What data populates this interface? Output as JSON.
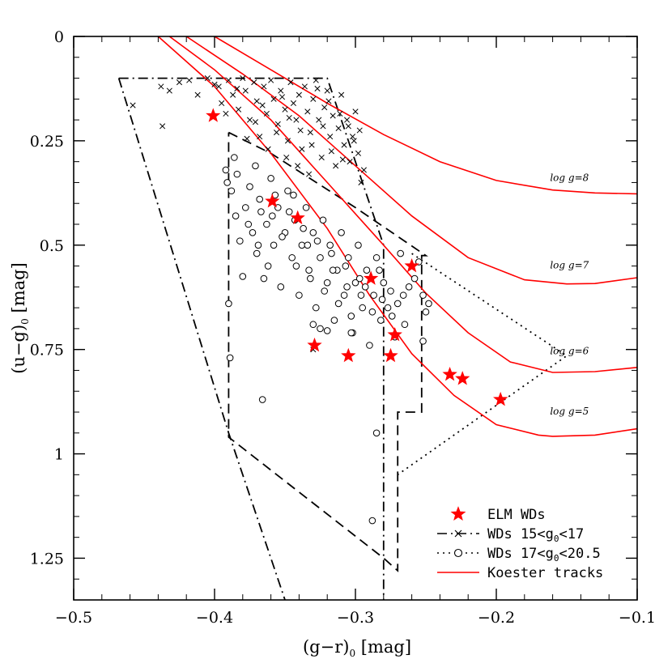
{
  "chart_data": {
    "type": "scatter",
    "title": "",
    "xlabel_main": "(g−r)",
    "xlabel_sub": "0",
    "xlabel_unit": " [mag]",
    "ylabel_main": "(u−g)",
    "ylabel_sub": "0",
    "ylabel_unit": " [mag]",
    "xlim": [
      -0.5,
      -0.1
    ],
    "ylim": [
      1.35,
      0.0
    ],
    "y_inverted": true,
    "x_ticks": [
      -0.5,
      -0.4,
      -0.3,
      -0.2,
      -0.1
    ],
    "x_tick_labels": [
      "−0.5",
      "−0.4",
      "−0.3",
      "−0.2",
      "−0.1"
    ],
    "y_ticks": [
      0,
      0.25,
      0.5,
      0.75,
      1.0,
      1.25
    ],
    "y_tick_labels": [
      "0",
      "0.25",
      "0.5",
      "0.75",
      "1",
      "1.25"
    ],
    "grid": false,
    "legend_position": "bottom-right",
    "legend": [
      {
        "label": "ELM WDs",
        "marker": "star",
        "color": "#ff0000"
      },
      {
        "label_main": "WDs 15<g",
        "label_sub": "0",
        "label_tail": "<17",
        "marker": "cross",
        "line": "dashdot"
      },
      {
        "label_main": "WDs 17<g",
        "label_sub": "0",
        "label_tail": "<20.5",
        "marker": "circle",
        "line": "dotted"
      },
      {
        "label": "Koester tracks",
        "marker": "none",
        "line": "solid",
        "color": "#ff0000"
      }
    ],
    "series": [
      {
        "name": "ELM WDs",
        "kind": "star",
        "color": "#ff0000",
        "points": [
          [
            -0.401,
            0.19
          ],
          [
            -0.359,
            0.395
          ],
          [
            -0.341,
            0.435
          ],
          [
            -0.289,
            0.58
          ],
          [
            -0.26,
            0.55
          ],
          [
            -0.329,
            0.74
          ],
          [
            -0.305,
            0.765
          ],
          [
            -0.272,
            0.715
          ],
          [
            -0.275,
            0.765
          ],
          [
            -0.233,
            0.81
          ],
          [
            -0.224,
            0.82
          ],
          [
            -0.197,
            0.87
          ]
        ]
      },
      {
        "name": "WDs 15<g0<17",
        "kind": "cross",
        "points": [
          [
            -0.458,
            0.165
          ],
          [
            -0.438,
            0.12
          ],
          [
            -0.432,
            0.13
          ],
          [
            -0.425,
            0.11
          ],
          [
            -0.437,
            0.215
          ],
          [
            -0.418,
            0.105
          ],
          [
            -0.412,
            0.14
          ],
          [
            -0.405,
            0.1
          ],
          [
            -0.4,
            0.115
          ],
          [
            -0.395,
            0.16
          ],
          [
            -0.397,
            0.12
          ],
          [
            -0.39,
            0.105
          ],
          [
            -0.387,
            0.14
          ],
          [
            -0.383,
            0.175
          ],
          [
            -0.38,
            0.1
          ],
          [
            -0.378,
            0.13
          ],
          [
            -0.375,
            0.2
          ],
          [
            -0.372,
            0.11
          ],
          [
            -0.37,
            0.155
          ],
          [
            -0.368,
            0.24
          ],
          [
            -0.365,
            0.12
          ],
          [
            -0.363,
            0.185
          ],
          [
            -0.36,
            0.105
          ],
          [
            -0.358,
            0.15
          ],
          [
            -0.355,
            0.21
          ],
          [
            -0.353,
            0.13
          ],
          [
            -0.35,
            0.175
          ],
          [
            -0.348,
            0.25
          ],
          [
            -0.346,
            0.11
          ],
          [
            -0.344,
            0.16
          ],
          [
            -0.342,
            0.2
          ],
          [
            -0.34,
            0.14
          ],
          [
            -0.338,
            0.27
          ],
          [
            -0.336,
            0.12
          ],
          [
            -0.334,
            0.18
          ],
          [
            -0.332,
            0.23
          ],
          [
            -0.33,
            0.15
          ],
          [
            -0.328,
            0.105
          ],
          [
            -0.326,
            0.2
          ],
          [
            -0.324,
            0.29
          ],
          [
            -0.322,
            0.17
          ],
          [
            -0.32,
            0.13
          ],
          [
            -0.318,
            0.24
          ],
          [
            -0.316,
            0.19
          ],
          [
            -0.314,
            0.31
          ],
          [
            -0.312,
            0.22
          ],
          [
            -0.31,
            0.14
          ],
          [
            -0.308,
            0.26
          ],
          [
            -0.306,
            0.2
          ],
          [
            -0.304,
            0.3
          ],
          [
            -0.302,
            0.24
          ],
          [
            -0.3,
            0.18
          ],
          [
            -0.298,
            0.28
          ],
          [
            -0.296,
            0.35
          ],
          [
            -0.294,
            0.32
          ],
          [
            -0.352,
            0.145
          ],
          [
            -0.347,
            0.195
          ],
          [
            -0.339,
            0.225
          ],
          [
            -0.331,
            0.26
          ],
          [
            -0.323,
            0.215
          ],
          [
            -0.317,
            0.275
          ],
          [
            -0.309,
            0.295
          ],
          [
            -0.301,
            0.25
          ],
          [
            -0.356,
            0.23
          ],
          [
            -0.362,
            0.27
          ],
          [
            -0.349,
            0.29
          ],
          [
            -0.341,
            0.31
          ],
          [
            -0.333,
            0.33
          ],
          [
            -0.327,
            0.125
          ],
          [
            -0.319,
            0.155
          ],
          [
            -0.311,
            0.185
          ],
          [
            -0.305,
            0.215
          ],
          [
            -0.297,
            0.225
          ],
          [
            -0.366,
            0.165
          ],
          [
            -0.371,
            0.205
          ],
          [
            -0.377,
            0.245
          ],
          [
            -0.384,
            0.125
          ],
          [
            -0.392,
            0.185
          ],
          [
            -0.33,
            0.75
          ]
        ]
      },
      {
        "name": "WDs 17<g0<20.5",
        "kind": "circle",
        "points": [
          [
            -0.392,
            0.32
          ],
          [
            -0.388,
            0.37
          ],
          [
            -0.385,
            0.43
          ],
          [
            -0.382,
            0.49
          ],
          [
            -0.38,
            0.575
          ],
          [
            -0.378,
            0.41
          ],
          [
            -0.375,
            0.36
          ],
          [
            -0.373,
            0.47
          ],
          [
            -0.37,
            0.52
          ],
          [
            -0.368,
            0.39
          ],
          [
            -0.365,
            0.58
          ],
          [
            -0.363,
            0.45
          ],
          [
            -0.36,
            0.34
          ],
          [
            -0.358,
            0.5
          ],
          [
            -0.355,
            0.41
          ],
          [
            -0.353,
            0.6
          ],
          [
            -0.35,
            0.47
          ],
          [
            -0.348,
            0.37
          ],
          [
            -0.345,
            0.53
          ],
          [
            -0.343,
            0.44
          ],
          [
            -0.34,
            0.62
          ],
          [
            -0.338,
            0.5
          ],
          [
            -0.335,
            0.41
          ],
          [
            -0.333,
            0.56
          ],
          [
            -0.33,
            0.47
          ],
          [
            -0.328,
            0.65
          ],
          [
            -0.325,
            0.53
          ],
          [
            -0.323,
            0.44
          ],
          [
            -0.32,
            0.59
          ],
          [
            -0.318,
            0.5
          ],
          [
            -0.315,
            0.68
          ],
          [
            -0.313,
            0.56
          ],
          [
            -0.31,
            0.47
          ],
          [
            -0.308,
            0.62
          ],
          [
            -0.305,
            0.53
          ],
          [
            -0.302,
            0.71
          ],
          [
            -0.3,
            0.59
          ],
          [
            -0.298,
            0.5
          ],
          [
            -0.295,
            0.65
          ],
          [
            -0.292,
            0.56
          ],
          [
            -0.29,
            0.74
          ],
          [
            -0.287,
            0.62
          ],
          [
            -0.285,
            0.53
          ],
          [
            -0.282,
            0.68
          ],
          [
            -0.28,
            0.59
          ],
          [
            -0.277,
            0.65
          ],
          [
            -0.275,
            0.61
          ],
          [
            -0.272,
            0.72
          ],
          [
            -0.27,
            0.64
          ],
          [
            -0.268,
            0.52
          ],
          [
            -0.265,
            0.69
          ],
          [
            -0.262,
            0.6
          ],
          [
            -0.258,
            0.58
          ],
          [
            -0.255,
            0.54
          ],
          [
            -0.252,
            0.62
          ],
          [
            -0.25,
            0.66
          ],
          [
            -0.248,
            0.64
          ],
          [
            -0.252,
            0.73
          ],
          [
            -0.391,
            0.35
          ],
          [
            -0.386,
            0.29
          ],
          [
            -0.384,
            0.33
          ],
          [
            -0.371,
            0.31
          ],
          [
            -0.367,
            0.42
          ],
          [
            -0.362,
            0.55
          ],
          [
            -0.357,
            0.38
          ],
          [
            -0.352,
            0.48
          ],
          [
            -0.347,
            0.42
          ],
          [
            -0.342,
            0.55
          ],
          [
            -0.337,
            0.46
          ],
          [
            -0.332,
            0.58
          ],
          [
            -0.327,
            0.49
          ],
          [
            -0.322,
            0.61
          ],
          [
            -0.317,
            0.52
          ],
          [
            -0.312,
            0.64
          ],
          [
            -0.307,
            0.55
          ],
          [
            -0.303,
            0.67
          ],
          [
            -0.297,
            0.58
          ],
          [
            -0.293,
            0.6
          ],
          [
            -0.288,
            0.66
          ],
          [
            -0.283,
            0.56
          ],
          [
            -0.33,
            0.69
          ],
          [
            -0.325,
            0.7
          ],
          [
            -0.32,
            0.705
          ],
          [
            -0.303,
            0.71
          ],
          [
            -0.366,
            0.87
          ],
          [
            -0.39,
            0.64
          ],
          [
            -0.389,
            0.77
          ],
          [
            -0.285,
            0.95
          ],
          [
            -0.288,
            1.16
          ],
          [
            -0.376,
            0.45
          ],
          [
            -0.369,
            0.5
          ],
          [
            -0.359,
            0.43
          ],
          [
            -0.344,
            0.38
          ],
          [
            -0.334,
            0.5
          ],
          [
            -0.316,
            0.56
          ],
          [
            -0.306,
            0.6
          ],
          [
            -0.296,
            0.62
          ],
          [
            -0.281,
            0.63
          ],
          [
            -0.274,
            0.67
          ],
          [
            -0.266,
            0.62
          ]
        ]
      },
      {
        "name": "Koester tracks",
        "kind": "line",
        "color": "#ff0000",
        "tracks": [
          {
            "label_text": "log g=8",
            "label_at": [
              -0.155,
              0.35
            ],
            "points": [
              [
                -0.4,
                0.0
              ],
              [
                -0.36,
                0.08
              ],
              [
                -0.32,
                0.16
              ],
              [
                -0.28,
                0.235
              ],
              [
                -0.24,
                0.3
              ],
              [
                -0.2,
                0.345
              ],
              [
                -0.16,
                0.368
              ],
              [
                -0.13,
                0.375
              ],
              [
                -0.1,
                0.377
              ]
            ]
          },
          {
            "label_text": "log g=7",
            "label_at": [
              -0.155,
              0.56
            ],
            "points": [
              [
                -0.42,
                0.0
              ],
              [
                -0.38,
                0.09
              ],
              [
                -0.34,
                0.19
              ],
              [
                -0.3,
                0.31
              ],
              [
                -0.26,
                0.43
              ],
              [
                -0.22,
                0.53
              ],
              [
                -0.18,
                0.583
              ],
              [
                -0.15,
                0.593
              ],
              [
                -0.13,
                0.592
              ],
              [
                -0.1,
                0.578
              ]
            ]
          },
          {
            "label_text": "log g=6",
            "label_at": [
              -0.155,
              0.765
            ],
            "points": [
              [
                -0.432,
                0.0
              ],
              [
                -0.4,
                0.08
              ],
              [
                -0.36,
                0.2
              ],
              [
                -0.32,
                0.35
              ],
              [
                -0.28,
                0.5
              ],
              [
                -0.25,
                0.615
              ],
              [
                -0.22,
                0.71
              ],
              [
                -0.19,
                0.78
              ],
              [
                -0.16,
                0.805
              ],
              [
                -0.13,
                0.803
              ],
              [
                -0.1,
                0.793
              ]
            ]
          },
          {
            "label_text": "log g=5",
            "label_at": [
              -0.155,
              0.91
            ],
            "points": [
              [
                -0.44,
                0.0
              ],
              [
                -0.4,
                0.12
              ],
              [
                -0.36,
                0.28
              ],
              [
                -0.32,
                0.46
              ],
              [
                -0.29,
                0.62
              ],
              [
                -0.26,
                0.76
              ],
              [
                -0.23,
                0.86
              ],
              [
                -0.2,
                0.93
              ],
              [
                -0.17,
                0.955
              ],
              [
                -0.16,
                0.958
              ],
              [
                -0.13,
                0.955
              ],
              [
                -0.1,
                0.94
              ]
            ]
          }
        ]
      }
    ],
    "selection_regions": [
      {
        "name": "dash-dot region",
        "style": "dashdot",
        "points": [
          [
            -0.468,
            0.1
          ],
          [
            -0.32,
            0.1
          ],
          [
            -0.3,
            0.3
          ],
          [
            -0.28,
            0.5
          ],
          [
            -0.28,
            1.35
          ],
          [
            -0.28,
            1.35
          ]
        ]
      },
      {
        "name": "dash-dot lower",
        "style": "dashdot",
        "points": [
          [
            -0.468,
            0.1
          ],
          [
            -0.39,
            0.95
          ],
          [
            -0.35,
            1.35
          ]
        ]
      },
      {
        "name": "dashed region",
        "style": "dashed",
        "points": [
          [
            -0.39,
            0.23
          ],
          [
            -0.36,
            0.28
          ],
          [
            -0.3,
            0.41
          ],
          [
            -0.25,
            0.525
          ],
          [
            -0.253,
            0.525
          ],
          [
            -0.253,
            0.9
          ],
          [
            -0.27,
            0.9
          ],
          [
            -0.27,
            1.28
          ],
          [
            -0.28,
            1.25
          ],
          [
            -0.39,
            0.96
          ],
          [
            -0.39,
            0.23
          ]
        ]
      },
      {
        "name": "dotted region",
        "style": "dotted",
        "points": [
          [
            -0.26,
            0.52
          ],
          [
            -0.15,
            0.765
          ],
          [
            -0.27,
            1.05
          ]
        ]
      }
    ]
  }
}
